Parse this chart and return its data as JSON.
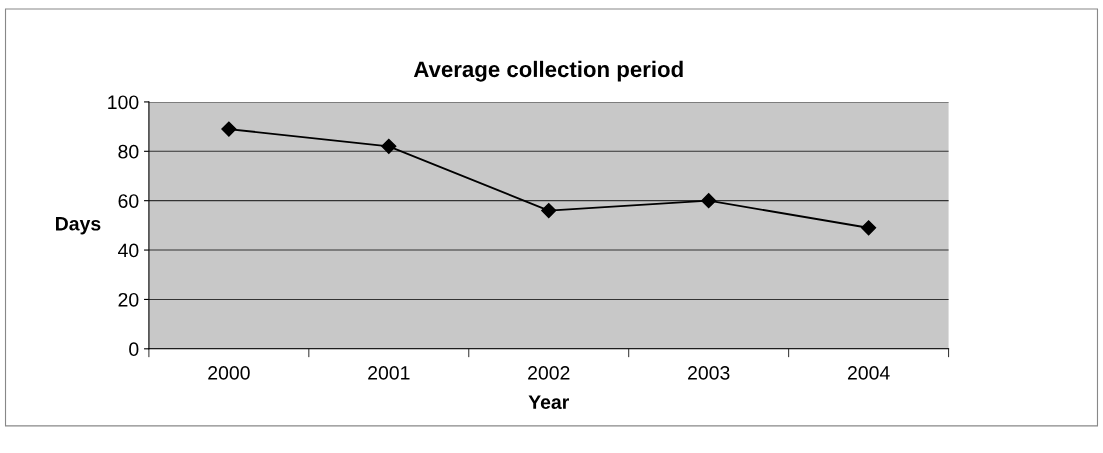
{
  "chart_data": {
    "type": "line",
    "title": "Average collection period",
    "xlabel": "Year",
    "ylabel": "Days",
    "categories": [
      "2000",
      "2001",
      "2002",
      "2003",
      "2004"
    ],
    "series": [
      {
        "color": "#000000",
        "values": [
          89,
          82,
          56,
          60,
          49
        ]
      }
    ],
    "ylim": [
      0,
      100
    ],
    "yticks": [
      0,
      20,
      40,
      60,
      80,
      100
    ],
    "grid": "y",
    "marker": "diamond",
    "line_style": "solid",
    "legend": false
  }
}
